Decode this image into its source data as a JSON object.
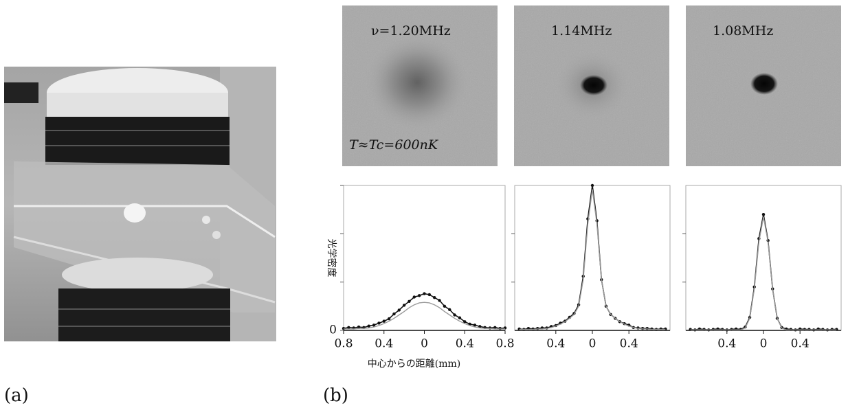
{
  "panels": {
    "label_a": "(a)",
    "label_b": "(b)",
    "images": [
      {
        "label": "ν=1.20MHz",
        "note": "T≈Tc=600nK"
      },
      {
        "label": "1.14MHz"
      },
      {
        "label": "1.08MHz"
      }
    ]
  },
  "chart_data": [
    {
      "type": "line",
      "xlabel": "中心からの距離(mm)",
      "ylabel": "光学密度",
      "x": [
        -0.8,
        -0.75,
        -0.7,
        -0.65,
        -0.6,
        -0.55,
        -0.5,
        -0.45,
        -0.4,
        -0.35,
        -0.3,
        -0.25,
        -0.2,
        -0.15,
        -0.1,
        -0.05,
        0,
        0.05,
        0.1,
        0.15,
        0.2,
        0.25,
        0.3,
        0.35,
        0.4,
        0.45,
        0.5,
        0.55,
        0.6,
        0.65,
        0.7,
        0.75,
        0.8
      ],
      "series": [
        {
          "color": "#111111",
          "marker": true,
          "values": [
            0.04,
            0.06,
            0.05,
            0.07,
            0.06,
            0.09,
            0.11,
            0.15,
            0.19,
            0.24,
            0.34,
            0.42,
            0.52,
            0.6,
            0.69,
            0.72,
            0.76,
            0.74,
            0.68,
            0.62,
            0.5,
            0.43,
            0.32,
            0.26,
            0.18,
            0.13,
            0.11,
            0.08,
            0.06,
            0.05,
            0.06,
            0.04,
            0.05
          ]
        },
        {
          "color": "#9a9a9a",
          "marker": false,
          "values": [
            0.03,
            0.03,
            0.03,
            0.04,
            0.04,
            0.05,
            0.07,
            0.1,
            0.14,
            0.19,
            0.25,
            0.32,
            0.39,
            0.47,
            0.53,
            0.57,
            0.58,
            0.57,
            0.53,
            0.47,
            0.39,
            0.32,
            0.25,
            0.19,
            0.14,
            0.1,
            0.07,
            0.05,
            0.04,
            0.04,
            0.03,
            0.03,
            0.03
          ]
        }
      ],
      "xlim": [
        -0.8,
        0.8
      ],
      "xticks": [
        {
          "value": -0.8,
          "label": "0.8"
        },
        {
          "value": -0.4,
          "label": "0.4"
        },
        0,
        0.4,
        0.8
      ],
      "ylim": [
        0,
        3
      ],
      "yticks": [
        0,
        {
          "value": 1,
          "label": null
        },
        {
          "value": 2,
          "label": null
        },
        {
          "value": 3,
          "label": null
        }
      ]
    },
    {
      "type": "line",
      "x": [
        -0.8,
        -0.75,
        -0.7,
        -0.65,
        -0.6,
        -0.55,
        -0.5,
        -0.45,
        -0.4,
        -0.35,
        -0.3,
        -0.25,
        -0.2,
        -0.15,
        -0.1,
        -0.05,
        0,
        0.05,
        0.1,
        0.15,
        0.2,
        0.25,
        0.3,
        0.35,
        0.4,
        0.45,
        0.5,
        0.55,
        0.6,
        0.65,
        0.7,
        0.75,
        0.8
      ],
      "series": [
        {
          "color": "#111111",
          "marker": true,
          "values": [
            0.03,
            0.02,
            0.04,
            0.03,
            0.04,
            0.05,
            0.05,
            0.08,
            0.1,
            0.15,
            0.19,
            0.27,
            0.35,
            0.53,
            1.12,
            2.31,
            3.0,
            2.27,
            1.05,
            0.5,
            0.33,
            0.25,
            0.18,
            0.14,
            0.11,
            0.06,
            0.05,
            0.04,
            0.04,
            0.03,
            0.02,
            0.03,
            0.03
          ]
        },
        {
          "color": "#9a9a9a",
          "marker": false,
          "values": [
            0.02,
            0.02,
            0.02,
            0.02,
            0.03,
            0.03,
            0.04,
            0.06,
            0.09,
            0.13,
            0.18,
            0.25,
            0.33,
            0.5,
            1.05,
            2.2,
            2.92,
            2.2,
            1.05,
            0.5,
            0.33,
            0.25,
            0.18,
            0.13,
            0.09,
            0.06,
            0.04,
            0.03,
            0.03,
            0.02,
            0.02,
            0.02,
            0.02
          ]
        }
      ],
      "xlim": [
        -0.85,
        0.85
      ],
      "xticks": [
        {
          "value": -0.4,
          "label": "0.4"
        },
        0,
        0.4
      ],
      "ylim": [
        0,
        3
      ],
      "yticks": [
        {
          "value": 1,
          "label": null
        },
        {
          "value": 2,
          "label": null
        }
      ]
    },
    {
      "type": "line",
      "x": [
        -0.8,
        -0.75,
        -0.7,
        -0.65,
        -0.6,
        -0.55,
        -0.5,
        -0.45,
        -0.4,
        -0.35,
        -0.3,
        -0.25,
        -0.2,
        -0.15,
        -0.1,
        -0.05,
        0,
        0.05,
        0.1,
        0.15,
        0.2,
        0.25,
        0.3,
        0.35,
        0.4,
        0.45,
        0.5,
        0.55,
        0.6,
        0.65,
        0.7,
        0.75,
        0.8
      ],
      "series": [
        {
          "color": "#111111",
          "marker": true,
          "values": [
            0.02,
            0.01,
            0.03,
            0.02,
            0.01,
            0.02,
            0.03,
            0.02,
            0.01,
            0.02,
            0.03,
            0.02,
            0.07,
            0.27,
            0.9,
            1.9,
            2.4,
            1.86,
            0.86,
            0.25,
            0.06,
            0.03,
            0.02,
            0.01,
            0.03,
            0.02,
            0.02,
            0.01,
            0.03,
            0.02,
            0.01,
            0.02,
            0.02
          ]
        },
        {
          "color": "#9a9a9a",
          "marker": false,
          "values": [
            0.01,
            0.01,
            0.01,
            0.01,
            0.01,
            0.01,
            0.01,
            0.01,
            0.01,
            0.01,
            0.01,
            0.01,
            0.05,
            0.25,
            0.86,
            1.83,
            2.35,
            1.83,
            0.86,
            0.25,
            0.05,
            0.01,
            0.01,
            0.01,
            0.01,
            0.01,
            0.01,
            0.01,
            0.01,
            0.01,
            0.01,
            0.01,
            0.01
          ]
        }
      ],
      "xlim": [
        -0.85,
        0.85
      ],
      "xticks": [
        {
          "value": -0.4,
          "label": "0.4"
        },
        0,
        0.4
      ],
      "ylim": [
        0,
        3
      ],
      "yticks": [
        {
          "value": 1,
          "label": null
        },
        {
          "value": 2,
          "label": null
        }
      ]
    }
  ]
}
